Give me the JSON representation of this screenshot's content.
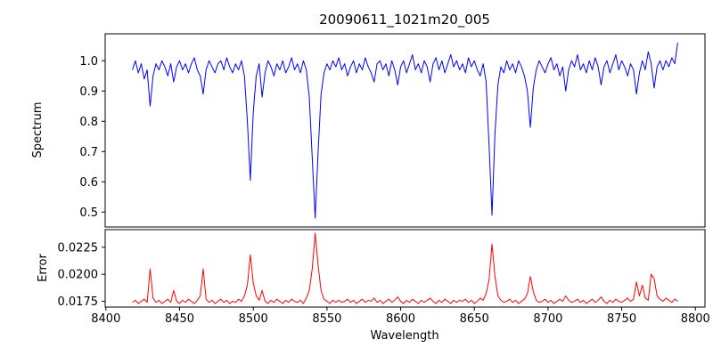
{
  "figure": {
    "title": "20090611_1021m20_005",
    "xlabel": "Wavelength"
  },
  "chart_data": [
    {
      "type": "line",
      "title": "20090611_1021m20_005",
      "ylabel": "Spectrum",
      "xlabel": "Wavelength",
      "color": "#0000ff",
      "legend": "none",
      "grid": false,
      "xlim": [
        8399.5,
        8806.5
      ],
      "ylim": [
        0.451,
        1.089
      ],
      "xticks": [
        8400,
        8450,
        8500,
        8550,
        8600,
        8650,
        8700,
        8750,
        8800
      ],
      "yticks": [
        0.5,
        0.6,
        0.7,
        0.8,
        0.9,
        1.0
      ],
      "ytick_labels": [
        "0.5",
        "0.6",
        "0.7",
        "0.8",
        "0.9",
        "1.0"
      ],
      "x_start": 8418,
      "x_step": 2,
      "absorption_lines": [
        {
          "center": 8498,
          "depth": 0.605
        },
        {
          "center": 8542,
          "depth": 0.48
        },
        {
          "center": 8662,
          "depth": 0.49
        },
        {
          "center": 8688,
          "depth": 0.78
        }
      ],
      "values": [
        0.97,
        1.0,
        0.96,
        0.99,
        0.94,
        0.97,
        0.85,
        0.95,
        0.99,
        0.97,
        1.0,
        0.98,
        0.95,
        0.99,
        0.93,
        0.98,
        1.0,
        0.97,
        0.99,
        0.96,
        0.99,
        1.01,
        0.97,
        0.95,
        0.89,
        0.97,
        1.0,
        0.98,
        0.96,
        0.99,
        1.0,
        0.97,
        1.01,
        0.98,
        0.96,
        0.99,
        0.97,
        1.0,
        0.95,
        0.8,
        0.605,
        0.83,
        0.95,
        0.99,
        0.88,
        0.96,
        1.0,
        0.98,
        0.95,
        0.99,
        0.97,
        1.0,
        0.96,
        0.98,
        1.01,
        0.97,
        0.99,
        0.96,
        1.0,
        0.97,
        0.88,
        0.68,
        0.48,
        0.7,
        0.89,
        0.96,
        0.99,
        0.97,
        1.0,
        0.98,
        1.01,
        0.97,
        0.99,
        0.95,
        0.98,
        1.0,
        0.96,
        0.99,
        0.97,
        1.01,
        0.98,
        0.96,
        0.93,
        0.99,
        1.0,
        0.97,
        0.99,
        0.95,
        1.0,
        0.97,
        0.92,
        0.98,
        1.0,
        0.96,
        0.99,
        1.02,
        0.97,
        0.99,
        0.96,
        1.0,
        0.98,
        0.93,
        0.99,
        1.01,
        0.97,
        1.0,
        0.96,
        0.99,
        1.02,
        0.98,
        1.0,
        0.97,
        0.99,
        0.96,
        1.01,
        0.98,
        1.0,
        0.97,
        0.95,
        0.99,
        0.93,
        0.72,
        0.49,
        0.76,
        0.92,
        0.98,
        0.96,
        1.0,
        0.97,
        0.99,
        0.96,
        1.0,
        0.98,
        0.95,
        0.9,
        0.78,
        0.91,
        0.97,
        1.0,
        0.98,
        0.96,
        0.99,
        1.01,
        0.97,
        0.99,
        0.95,
        0.98,
        0.9,
        0.97,
        1.0,
        0.98,
        1.02,
        0.97,
        0.99,
        0.96,
        1.0,
        0.97,
        1.01,
        0.98,
        0.92,
        0.98,
        1.0,
        0.96,
        0.99,
        1.02,
        0.97,
        1.0,
        0.98,
        0.95,
        0.99,
        0.97,
        0.89,
        0.96,
        1.0,
        0.97,
        1.03,
        0.99,
        0.91,
        0.98,
        1.0,
        0.97,
        1.0,
        0.98,
        1.01,
        0.99,
        1.06
      ]
    },
    {
      "type": "line",
      "title": "",
      "ylabel": "Error",
      "xlabel": "Wavelength",
      "color": "#ff0000",
      "legend": "none",
      "grid": false,
      "xlim": [
        8399.5,
        8806.5
      ],
      "ylim": [
        0.01697,
        0.02413
      ],
      "xticks": [
        8400,
        8450,
        8500,
        8550,
        8600,
        8650,
        8700,
        8750,
        8800
      ],
      "xtick_labels": [
        "8400",
        "8450",
        "8500",
        "8550",
        "8600",
        "8650",
        "8700",
        "8750",
        "8800"
      ],
      "yticks": [
        0.0175,
        0.02,
        0.0225
      ],
      "ytick_labels": [
        "0.0175",
        "0.0200",
        "0.0225"
      ],
      "x_start": 8418,
      "x_step": 2,
      "values": [
        0.0174,
        0.0176,
        0.0173,
        0.0175,
        0.0177,
        0.0174,
        0.0205,
        0.0178,
        0.0174,
        0.0176,
        0.0173,
        0.0175,
        0.0177,
        0.0174,
        0.0185,
        0.0175,
        0.0173,
        0.0176,
        0.0174,
        0.0177,
        0.0175,
        0.0173,
        0.0176,
        0.018,
        0.0205,
        0.0177,
        0.0174,
        0.0176,
        0.0173,
        0.0175,
        0.0177,
        0.0174,
        0.0176,
        0.0173,
        0.0175,
        0.0174,
        0.0177,
        0.0175,
        0.018,
        0.019,
        0.0218,
        0.0192,
        0.018,
        0.0176,
        0.0185,
        0.0175,
        0.0173,
        0.0176,
        0.0174,
        0.0177,
        0.0175,
        0.0173,
        0.0176,
        0.0174,
        0.0177,
        0.0175,
        0.0174,
        0.0176,
        0.0173,
        0.0178,
        0.0185,
        0.0205,
        0.0238,
        0.0208,
        0.0185,
        0.0177,
        0.0175,
        0.0173,
        0.0176,
        0.0174,
        0.0176,
        0.0174,
        0.0175,
        0.0177,
        0.0174,
        0.0176,
        0.0173,
        0.0175,
        0.0177,
        0.0174,
        0.0176,
        0.0175,
        0.0178,
        0.0174,
        0.0176,
        0.0173,
        0.0175,
        0.0177,
        0.0174,
        0.0176,
        0.0179,
        0.0175,
        0.0173,
        0.0176,
        0.0174,
        0.0177,
        0.0175,
        0.0173,
        0.0176,
        0.0174,
        0.0176,
        0.0178,
        0.0175,
        0.0173,
        0.0176,
        0.0174,
        0.0177,
        0.0175,
        0.0173,
        0.0176,
        0.0174,
        0.0176,
        0.0175,
        0.0177,
        0.0174,
        0.0176,
        0.0173,
        0.0175,
        0.0178,
        0.0176,
        0.0182,
        0.0195,
        0.0228,
        0.0198,
        0.018,
        0.0176,
        0.0174,
        0.0175,
        0.0177,
        0.0174,
        0.0176,
        0.0173,
        0.0175,
        0.0177,
        0.0182,
        0.0198,
        0.0184,
        0.0176,
        0.0174,
        0.0175,
        0.0177,
        0.0174,
        0.0176,
        0.0173,
        0.0175,
        0.0177,
        0.0175,
        0.018,
        0.0176,
        0.0174,
        0.0175,
        0.0177,
        0.0174,
        0.0176,
        0.0173,
        0.0175,
        0.0177,
        0.0174,
        0.0176,
        0.0179,
        0.0175,
        0.0173,
        0.0176,
        0.0174,
        0.0177,
        0.0175,
        0.0174,
        0.0176,
        0.0178,
        0.0175,
        0.0177,
        0.0193,
        0.018,
        0.019,
        0.0178,
        0.0176,
        0.02,
        0.0196,
        0.018,
        0.0177,
        0.0175,
        0.0178,
        0.0176,
        0.0174,
        0.0177,
        0.0175
      ]
    }
  ]
}
